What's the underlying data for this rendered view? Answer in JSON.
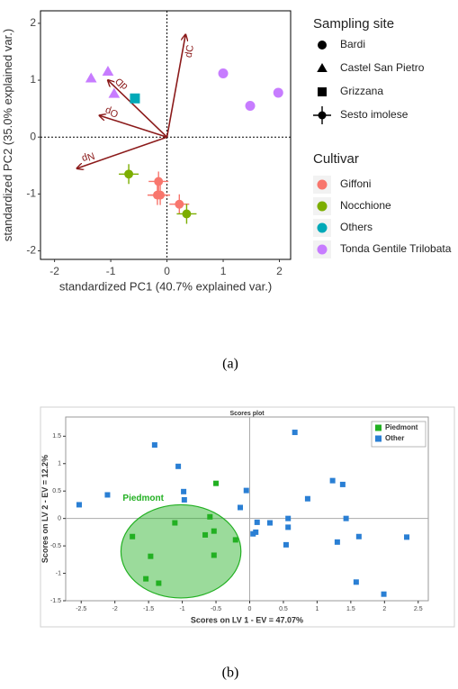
{
  "chart_data": [
    {
      "type": "scatter",
      "x_label": "standardized PC1 (40.7% explained var.)",
      "y_label": "standardized PC2 (35.0% explained var.)",
      "xlim": [
        -2.25,
        2.2
      ],
      "ylim": [
        -2.15,
        2.22
      ],
      "xticks": [
        -2,
        -1,
        0,
        1,
        2
      ],
      "yticks": [
        -2,
        -1,
        0,
        1,
        2
      ],
      "zero_line_style": "dotted",
      "shape_legend": {
        "title": "Sampling site",
        "items": [
          {
            "name": "Bardi",
            "marker": "circle"
          },
          {
            "name": "Castel San Pietro",
            "marker": "triangle"
          },
          {
            "name": "Grizzana",
            "marker": "square"
          },
          {
            "name": "Sesto imolese",
            "marker": "plus"
          }
        ]
      },
      "color_legend_title": "Cultivar",
      "series": [
        {
          "name": "Giffoni",
          "color": "#f8766d",
          "x": [
            -0.15,
            -0.17,
            -0.12,
            0.22
          ],
          "y": [
            -0.78,
            -1.02,
            -1.02,
            -1.18
          ],
          "markers": [
            "plus",
            "plus",
            "plus",
            "plus"
          ]
        },
        {
          "name": "Nocchione",
          "color": "#7cae00",
          "x": [
            -0.68,
            0.35
          ],
          "y": [
            -0.65,
            -1.35
          ],
          "markers": [
            "plus",
            "plus"
          ]
        },
        {
          "name": "Others",
          "color": "#00a9b8",
          "x": [
            -0.57
          ],
          "y": [
            0.68
          ],
          "markers": [
            "square"
          ]
        },
        {
          "name": "Tonda Gentile Trilobata",
          "color": "#c77cff",
          "x": [
            1.0,
            1.48,
            1.98,
            -1.35,
            -1.05,
            -0.94
          ],
          "y": [
            1.12,
            0.55,
            0.78,
            1.03,
            1.15,
            0.76
          ],
          "markers": [
            "circle",
            "circle",
            "circle",
            "triangle",
            "triangle",
            "triangle"
          ]
        }
      ],
      "arrow_color": "#8b1a1a",
      "arrows": [
        {
          "label": "dC",
          "x": 0.33,
          "y": 1.8
        },
        {
          "label": "dD",
          "x": -1.05,
          "y": 1.0
        },
        {
          "label": "Op",
          "x": -1.2,
          "y": 0.38
        },
        {
          "label": "Np",
          "x": -1.6,
          "y": -0.55
        }
      ],
      "caption": "(a)"
    },
    {
      "type": "scatter",
      "title": "Scores plot",
      "x_label": "Scores on LV 1 - EV = 47.07%",
      "y_label": "Scores on LV 2 - EV = 12.2%",
      "xlim": [
        -2.73,
        2.65
      ],
      "ylim": [
        -1.5,
        1.85
      ],
      "xticks": [
        -2.5,
        -2,
        -1.5,
        -1,
        -0.5,
        0,
        0.5,
        1,
        1.5,
        2,
        2.5
      ],
      "yticks": [
        -1.5,
        -1,
        -0.5,
        0,
        0.5,
        1,
        1.5
      ],
      "zero_line_style": "solid",
      "legend": "upper right",
      "series": [
        {
          "name": "Piedmont",
          "color": "#22b022",
          "marker": "square",
          "x": [
            -1.74,
            -1.11,
            -0.66,
            -0.59,
            -0.5,
            -0.53,
            -0.53,
            -0.21,
            -1.47,
            -1.54,
            -1.35
          ],
          "y": [
            -0.33,
            -0.08,
            -0.3,
            0.03,
            0.64,
            -0.23,
            -0.67,
            -0.39,
            -0.69,
            -1.1,
            -1.18
          ]
        },
        {
          "name": "Other",
          "color": "#2a7fd4",
          "marker": "square",
          "x": [
            -2.53,
            -2.11,
            -1.41,
            -1.06,
            -0.98,
            -0.97,
            -0.14,
            -0.05,
            0.05,
            0.09,
            0.11,
            0.3,
            0.57,
            0.57,
            0.54,
            0.67,
            0.86,
            1.23,
            1.38,
            1.43,
            1.3,
            1.62,
            1.58,
            1.99,
            2.33
          ],
          "y": [
            0.25,
            0.43,
            1.34,
            0.95,
            0.49,
            0.34,
            0.2,
            0.51,
            -0.28,
            -0.25,
            -0.07,
            -0.08,
            0,
            -0.16,
            -0.48,
            1.57,
            0.36,
            0.69,
            0.62,
            0,
            -0.43,
            -0.33,
            -1.16,
            -1.38,
            -0.34
          ]
        }
      ],
      "ellipse": {
        "cx": -1.02,
        "cy": -0.6,
        "rx": 0.89,
        "ry": 0.85,
        "color": "#22b022"
      },
      "caption": "(b)"
    }
  ]
}
